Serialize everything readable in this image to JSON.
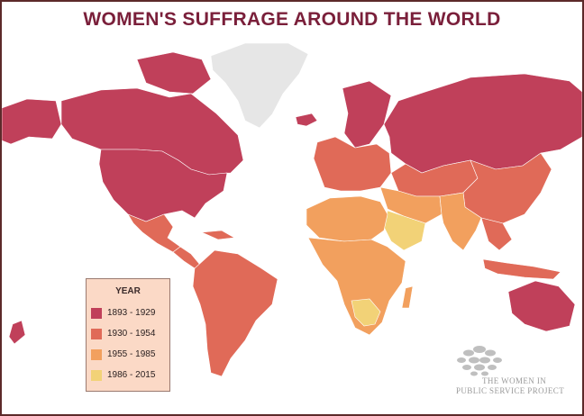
{
  "title": "WOMEN'S SUFFRAGE AROUND THE WORLD",
  "legend": {
    "title": "YEAR",
    "items": [
      {
        "label": "1893 - 1929",
        "color": "#c0405a"
      },
      {
        "label": "1930 - 1954",
        "color": "#e06a58"
      },
      {
        "label": "1955 - 1985",
        "color": "#f2a05e"
      },
      {
        "label": "1986 - 2015",
        "color": "#f2d277"
      }
    ]
  },
  "colors": {
    "no_data": "#e6e6e6",
    "border": "#5c2a2a",
    "title": "#7a1f3a"
  },
  "regions": [
    {
      "name": "Alaska",
      "color": "#c0405a"
    },
    {
      "name": "Canada",
      "color": "#c0405a"
    },
    {
      "name": "Greenland",
      "color": "#e6e6e6"
    },
    {
      "name": "United States",
      "color": "#c0405a"
    },
    {
      "name": "Mexico",
      "color": "#e06a58"
    },
    {
      "name": "Central America",
      "color": "#e06a58"
    },
    {
      "name": "South America",
      "color": "#e06a58"
    },
    {
      "name": "Iceland",
      "color": "#c0405a"
    },
    {
      "name": "Scandinavia",
      "color": "#c0405a"
    },
    {
      "name": "Western Europe",
      "color": "#e06a58"
    },
    {
      "name": "Russia",
      "color": "#c0405a"
    },
    {
      "name": "Central Asia",
      "color": "#e06a58"
    },
    {
      "name": "China",
      "color": "#e06a58"
    },
    {
      "name": "Middle East",
      "color": "#f2a05e"
    },
    {
      "name": "Arabian Peninsula",
      "color": "#f2d277"
    },
    {
      "name": "North Africa",
      "color": "#f2a05e"
    },
    {
      "name": "Sub-Saharan Africa",
      "color": "#f2a05e"
    },
    {
      "name": "South Asia",
      "color": "#f2a05e"
    },
    {
      "name": "Southeast Asia",
      "color": "#e06a58"
    },
    {
      "name": "Australia",
      "color": "#c0405a"
    },
    {
      "name": "New Zealand",
      "color": "#c0405a"
    }
  ],
  "watermark": {
    "line1": "THE WOMEN IN",
    "line2": "PUBLIC SERVICE PROJECT"
  }
}
